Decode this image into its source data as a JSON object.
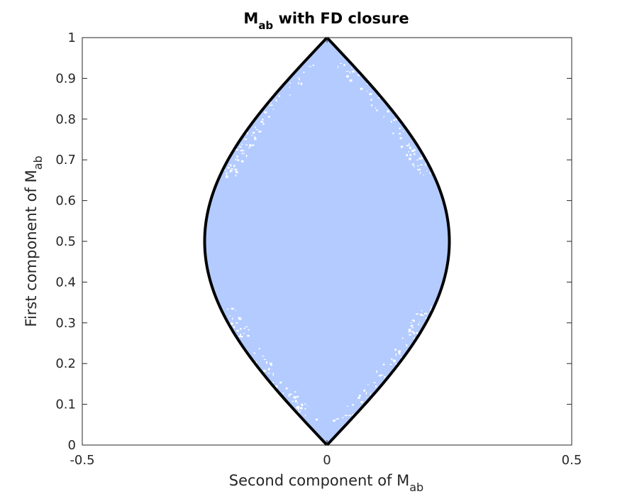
{
  "chart_data": {
    "type": "area",
    "title": "M",
    "title_subscript": "ab",
    "title_suffix": " with FD closure",
    "xlabel": "Second component of M",
    "xlabel_subscript": "ab",
    "ylabel": "First component of M",
    "ylabel_subscript": "ab",
    "xlim": [
      -0.5,
      0.5
    ],
    "ylim": [
      0,
      1
    ],
    "xticks": [
      -0.5,
      0,
      0.5
    ],
    "xtick_labels": [
      "-0.5",
      "0",
      "0.5"
    ],
    "yticks": [
      0,
      0.1,
      0.2,
      0.3,
      0.4,
      0.5,
      0.6,
      0.7,
      0.8,
      0.9,
      1
    ],
    "ytick_labels": [
      "0",
      "0.1",
      "0.2",
      "0.3",
      "0.4",
      "0.5",
      "0.6",
      "0.7",
      "0.8",
      "0.9",
      "1"
    ],
    "grid": false,
    "series": [
      {
        "kind": "filled-region",
        "color": "#b3cbff",
        "boundary": "x = ±0.25·sin(π·y)",
        "y_range": [
          0,
          1
        ],
        "max_half_width": 0.25
      },
      {
        "kind": "boundary-curve",
        "color": "#000000",
        "points": [
          [
            0,
            0
          ],
          [
            0.0774,
            0.1
          ],
          [
            0.1469,
            0.2
          ],
          [
            0.2023,
            0.3
          ],
          [
            0.2378,
            0.4
          ],
          [
            0.25,
            0.5
          ],
          [
            0.2378,
            0.6
          ],
          [
            0.2023,
            0.7
          ],
          [
            0.1469,
            0.8
          ],
          [
            0.0774,
            0.9
          ],
          [
            0,
            1
          ]
        ]
      }
    ],
    "colors": {
      "fill": "#b3cbff",
      "boundary": "#000000",
      "axes": "#262626"
    }
  }
}
